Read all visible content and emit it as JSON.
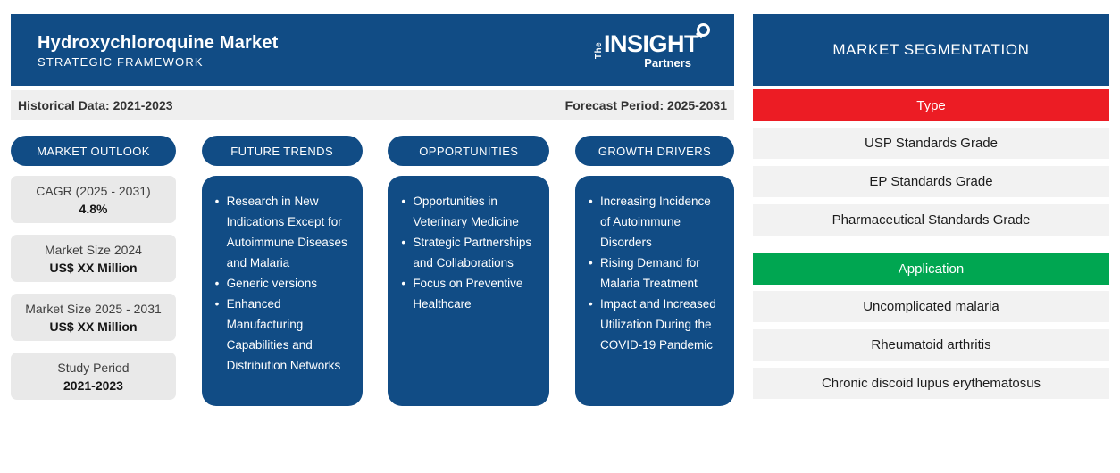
{
  "header": {
    "title": "Hydroxychloroquine Market",
    "subtitle": "STRATEGIC FRAMEWORK",
    "logo": {
      "the": "The",
      "insight": "INSIGHT",
      "partners": "Partners"
    }
  },
  "period_bar": {
    "historical": "Historical Data: 2021-2023",
    "forecast": "Forecast Period: 2025-2031"
  },
  "columns": {
    "market_outlook": {
      "title": "MARKET OUTLOOK",
      "stats": [
        {
          "label": "CAGR (2025 - 2031)",
          "value": "4.8%"
        },
        {
          "label": "Market Size 2024",
          "value": "US$ XX Million"
        },
        {
          "label": "Market Size 2025 - 2031",
          "value": "US$ XX Million"
        },
        {
          "label": "Study Period",
          "value": "2021-2023"
        }
      ]
    },
    "future_trends": {
      "title": "FUTURE TRENDS",
      "items": [
        "Research in New Indications Except for Autoimmune Diseases and Malaria",
        "Generic versions",
        "Enhanced Manufacturing Capabilities and Distribution Networks"
      ]
    },
    "opportunities": {
      "title": "OPPORTUNITIES",
      "items": [
        "Opportunities in Veterinary Medicine",
        "Strategic Partnerships and Collaborations",
        "Focus on Preventive Healthcare"
      ]
    },
    "growth_drivers": {
      "title": "GROWTH DRIVERS",
      "items": [
        "Increasing Incidence of Autoimmune Disorders",
        "Rising Demand for Malaria Treatment",
        "Impact and Increased Utilization During the COVID-19 Pandemic"
      ]
    }
  },
  "segmentation": {
    "title": "MARKET SEGMENTATION",
    "type": {
      "name": "Type",
      "color": "#ec1c24",
      "items": [
        "USP Standards Grade",
        "EP Standards Grade",
        "Pharmaceutical Standards Grade"
      ]
    },
    "application": {
      "name": "Application",
      "color": "#00a651",
      "items": [
        "Uncomplicated malaria",
        "Rheumatoid arthritis",
        "Chronic discoid lupus erythematosus"
      ]
    }
  },
  "colors": {
    "primary_blue": "#114c85",
    "type_red": "#ec1c24",
    "application_green": "#00a651"
  }
}
